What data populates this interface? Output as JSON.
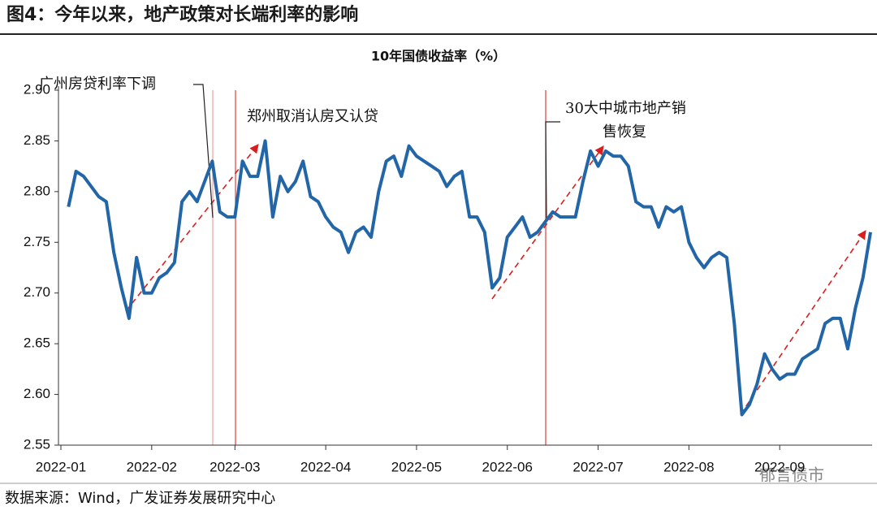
{
  "header": {
    "title": "图4：今年以来，地产政策对长端利率的影响"
  },
  "chart_data": {
    "type": "line",
    "title": "10年国债收益率（%）",
    "categories": [
      "2022-01",
      null,
      null,
      null,
      null,
      null,
      null,
      null,
      null,
      null,
      null,
      null,
      "2022-02",
      null,
      null,
      null,
      null,
      null,
      null,
      null,
      null,
      null,
      null,
      "2022-03",
      null,
      null,
      null,
      null,
      null,
      null,
      null,
      null,
      null,
      null,
      null,
      "2022-04",
      null,
      null,
      null,
      null,
      null,
      null,
      null,
      null,
      null,
      null,
      null,
      "2022-05",
      null,
      null,
      null,
      null,
      null,
      null,
      null,
      null,
      null,
      null,
      null,
      "2022-06",
      null,
      null,
      null,
      null,
      null,
      null,
      null,
      null,
      null,
      null,
      null,
      "2022-07",
      null,
      null,
      null,
      null,
      null,
      null,
      null,
      null,
      null,
      null,
      null,
      "2022-08",
      null,
      null,
      null,
      null,
      null,
      null,
      null,
      null,
      null,
      null,
      null,
      "2022-09",
      null,
      null,
      null,
      null,
      null,
      null,
      null,
      null,
      null,
      null,
      null,
      null
    ],
    "series": [
      {
        "name": "10年国债收益率",
        "color": "#2266a8",
        "values": [
          null,
          2.785,
          2.82,
          2.815,
          2.805,
          2.795,
          2.79,
          2.74,
          2.705,
          2.675,
          2.735,
          2.7,
          2.7,
          2.715,
          2.72,
          2.73,
          2.79,
          2.8,
          2.79,
          2.81,
          2.83,
          2.78,
          2.775,
          2.775,
          2.83,
          2.815,
          2.815,
          2.85,
          2.775,
          2.815,
          2.8,
          2.81,
          2.83,
          2.795,
          2.79,
          2.775,
          2.765,
          2.76,
          2.74,
          2.76,
          2.765,
          2.755,
          2.8,
          2.83,
          2.835,
          2.815,
          2.845,
          2.835,
          2.83,
          2.825,
          2.82,
          2.805,
          2.815,
          2.82,
          2.775,
          2.775,
          2.76,
          2.705,
          2.715,
          2.755,
          2.765,
          2.775,
          2.755,
          2.76,
          2.77,
          2.78,
          2.775,
          2.775,
          2.775,
          2.81,
          2.84,
          2.825,
          2.84,
          2.835,
          2.835,
          2.825,
          2.79,
          2.785,
          2.785,
          2.765,
          2.785,
          2.78,
          2.785,
          2.75,
          2.735,
          2.725,
          2.735,
          2.74,
          2.735,
          2.67,
          2.58,
          2.59,
          2.61,
          2.64,
          2.625,
          2.615,
          2.62,
          2.62,
          2.635,
          2.64,
          2.645,
          2.67,
          2.675,
          2.675,
          2.645,
          2.685,
          2.715,
          2.76
        ]
      }
    ],
    "ylim": [
      2.55,
      2.9
    ],
    "yticks": [
      2.55,
      {
        "value": 2.6,
        "label": "2.60"
      },
      2.65,
      {
        "value": 2.7,
        "label": "2.70"
      },
      2.75,
      {
        "value": 2.8,
        "label": "2.80"
      },
      2.85,
      {
        "value": 2.9,
        "label": "2.90"
      }
    ],
    "annotations": [
      "广州房贷利率下调",
      "郑州取消认房又认贷",
      "30大中城市地产销",
      "售恢复"
    ]
  },
  "source": "数据来源：Wind，广发证券发展研究中心",
  "watermark": "郁言债市"
}
